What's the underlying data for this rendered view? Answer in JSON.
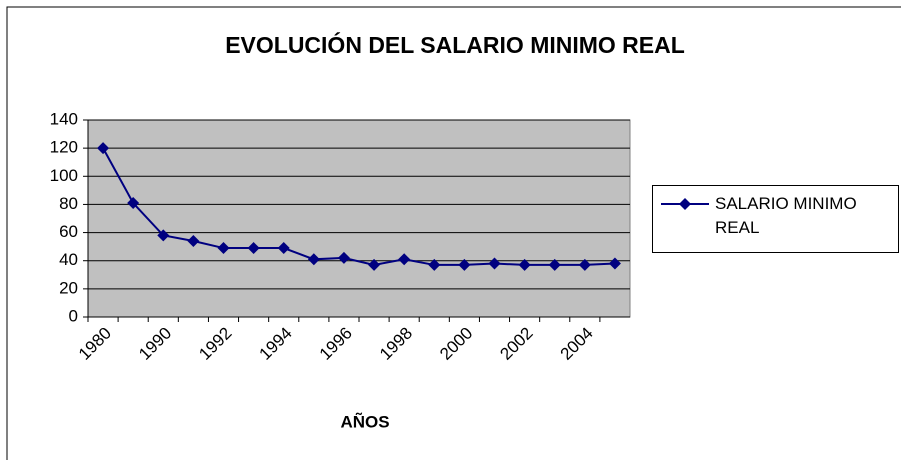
{
  "chart_data": {
    "type": "line",
    "title": "EVOLUCIÓN DEL SALARIO MINIMO REAL",
    "x_label": "AÑOS",
    "categories": [
      "1980",
      null,
      "1990",
      null,
      "1992",
      null,
      "1994",
      null,
      "1996",
      null,
      "1998",
      null,
      "2000",
      null,
      "2002",
      null,
      "2004",
      null
    ],
    "series": [
      {
        "name": "SALARIO MINIMO REAL",
        "color": "#000080",
        "values": [
          120,
          81,
          58,
          54,
          49,
          49,
          49,
          41,
          42,
          37,
          41,
          37,
          37,
          38,
          37,
          37,
          37,
          38
        ]
      }
    ],
    "ylim": [
      0,
      140
    ],
    "yticks": [
      0,
      20,
      40,
      60,
      80,
      100,
      120,
      140
    ],
    "grid": true,
    "plot_background": "#c0c0c0",
    "legend": "right"
  }
}
